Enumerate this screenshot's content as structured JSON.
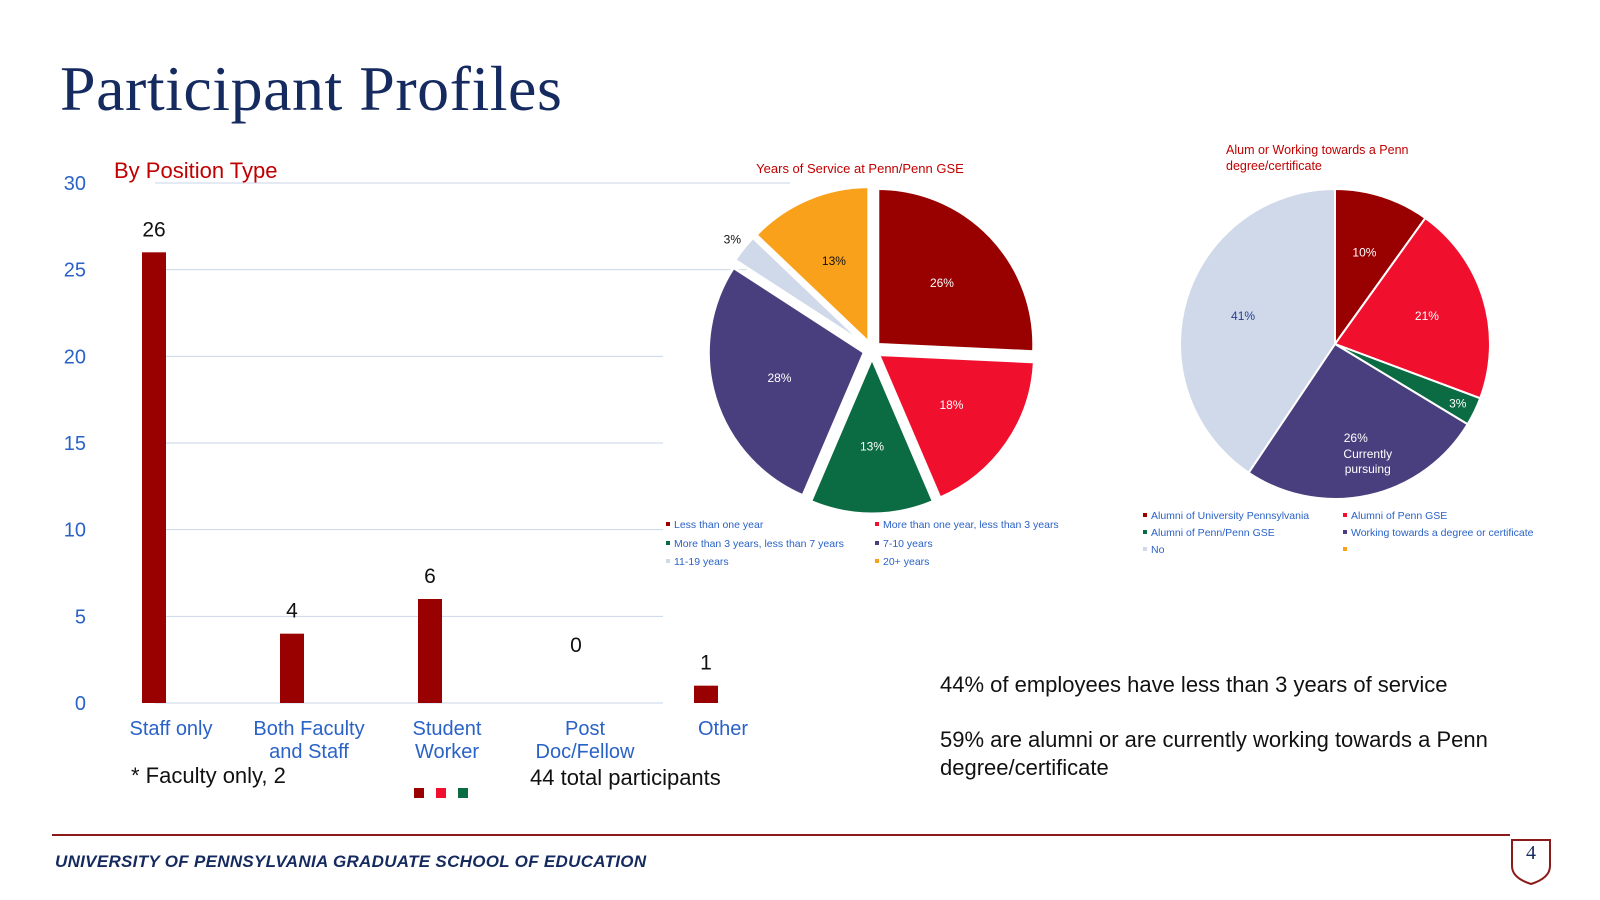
{
  "title": "Participant Profiles",
  "colors": {
    "dark_red": "#990000",
    "red": "#f0102e",
    "green": "#0b6b42",
    "purple": "#4a3f7e",
    "light_blue": "#cfd9ea",
    "orange": "#f9a11b",
    "axis_blue": "#2a62c7",
    "navy": "#152a5e"
  },
  "chart_data": [
    {
      "type": "bar",
      "title": "By Position Type",
      "categories": [
        [
          "Staff only"
        ],
        [
          "Both Faculty",
          "and Staff"
        ],
        [
          "Student",
          "Worker"
        ],
        [
          "Post",
          "Doc/Fellow"
        ],
        [
          "Other"
        ]
      ],
      "values": [
        26,
        4,
        6,
        0,
        1
      ],
      "data_labels": [
        "26",
        "4",
        "6",
        "0",
        "1"
      ],
      "ylim": [
        0,
        30
      ],
      "yticks": [
        "0",
        "5",
        "10",
        "15",
        "20",
        "25",
        "30"
      ],
      "grid": true,
      "bar_color": "#990000"
    },
    {
      "type": "pie",
      "title": "Years of Service at Penn/Penn GSE",
      "labels": [
        "Less than one year",
        "More than one year, less than 3 years",
        "More than 3 years, less than 7 years",
        "7-10 years",
        "11-19 years",
        "20+ years"
      ],
      "values": [
        26,
        18,
        13,
        28,
        3,
        13
      ],
      "data_labels": [
        "26%",
        "18%",
        "13%",
        "28%",
        "3%",
        "13%"
      ],
      "colors": [
        "#990000",
        "#f0102e",
        "#0b6b42",
        "#4a3f7e",
        "#cfd9ea",
        "#f9a11b"
      ],
      "legend": "bottom"
    },
    {
      "type": "pie",
      "title": "Alum or Working towards a Penn degree/certificate",
      "labels": [
        "Alumni of University Pennsylvania",
        "Alumni of Penn GSE",
        "Alumni of Penn/Penn GSE",
        "Working towards a degree or certificate",
        "No",
        ""
      ],
      "values": [
        10,
        21,
        3,
        26,
        41,
        0
      ],
      "data_labels": [
        "10%",
        "21%",
        "3%",
        "26%",
        "41%",
        ""
      ],
      "slice_notes": [
        "",
        "",
        "",
        "Currently pursuing",
        "",
        ""
      ],
      "colors": [
        "#990000",
        "#f0102e",
        "#0b6b42",
        "#4a3f7e",
        "#cfd9ea",
        "#f9a11b"
      ],
      "legend": "bottom"
    }
  ],
  "notes": {
    "faculty_only": "* Faculty only, 2",
    "total": "44 total participants"
  },
  "summary": {
    "service": "44% of employees have less than 3 years of service",
    "alumni": "59% are alumni or are currently working towards a Penn degree/certificate"
  },
  "footer": {
    "institution": "UNIVERSITY OF PENNSYLVANIA GRADUATE SCHOOL OF EDUCATION",
    "page_number": "4"
  }
}
